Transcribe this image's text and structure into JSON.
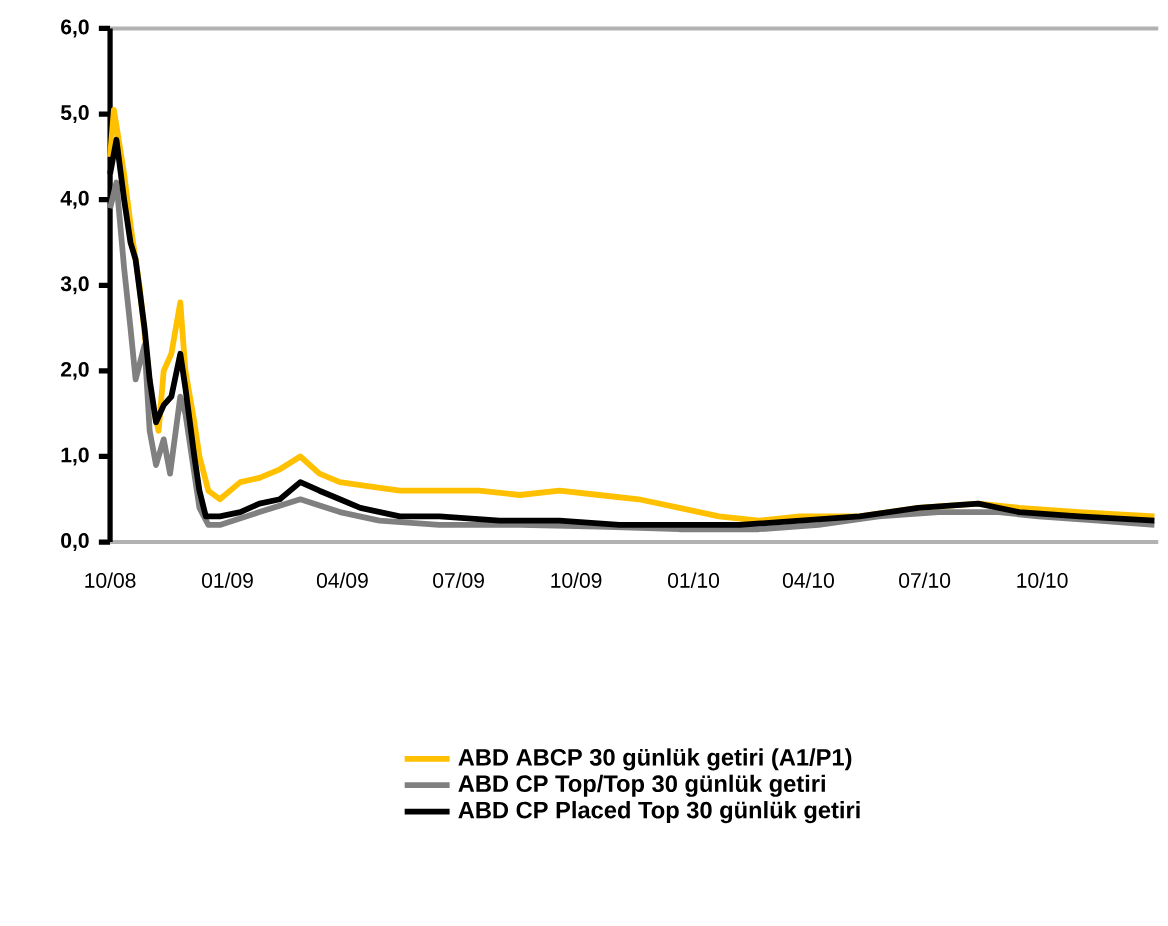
{
  "chart_data": {
    "type": "line",
    "xlim": [
      "2008-10-01",
      "2010-12-31"
    ],
    "xticks": [
      {
        "value": "2008-10-01",
        "label": "10/08"
      },
      {
        "value": "2009-01-01",
        "label": "01/09"
      },
      {
        "value": "2009-04-01",
        "label": "04/09"
      },
      {
        "value": "2009-07-01",
        "label": "07/09"
      },
      {
        "value": "2009-10-01",
        "label": "10/09"
      },
      {
        "value": "2010-01-01",
        "label": "01/10"
      },
      {
        "value": "2010-04-01",
        "label": "04/10"
      },
      {
        "value": "2010-07-01",
        "label": "07/10"
      },
      {
        "value": "2010-10-01",
        "label": "10/10"
      }
    ],
    "ylim": [
      0,
      6
    ],
    "yticks": [
      {
        "value": 0,
        "label": "0,0"
      },
      {
        "value": 1,
        "label": "1,0"
      },
      {
        "value": 2,
        "label": "2,0"
      },
      {
        "value": 3,
        "label": "3,0"
      },
      {
        "value": 4,
        "label": "4,0"
      },
      {
        "value": 5,
        "label": "5,0"
      },
      {
        "value": 6,
        "label": "6,0"
      }
    ],
    "legend": "bottom",
    "grid": false,
    "marker": "none",
    "line_style": "solid",
    "series": [
      {
        "name": "ABD ABCP 30 günlük getiri (A1/P1)",
        "color": "#ffc000",
        "x": [
          "2008-10-01",
          "2008-10-04",
          "2008-10-12",
          "2008-10-18",
          "2008-10-24",
          "2008-10-29",
          "2008-11-03",
          "2008-11-08",
          "2008-11-12",
          "2008-11-18",
          "2008-11-25",
          "2008-11-29",
          "2008-12-06",
          "2008-12-10",
          "2008-12-17",
          "2008-12-26",
          "2009-01-11",
          "2009-01-26",
          "2009-02-11",
          "2009-02-27",
          "2009-03-14",
          "2009-03-30",
          "2009-04-22",
          "2009-05-16",
          "2009-06-16",
          "2009-07-17",
          "2009-08-18",
          "2009-09-18",
          "2009-10-19",
          "2009-11-19",
          "2009-12-21",
          "2010-01-21",
          "2010-02-21",
          "2010-03-25",
          "2010-05-11",
          "2010-06-26",
          "2010-08-12",
          "2010-09-13",
          "2010-10-30",
          "2010-12-28"
        ],
        "values": [
          4.5,
          5.05,
          4.3,
          3.6,
          3.0,
          2.3,
          1.6,
          1.3,
          2.0,
          2.2,
          2.8,
          2.0,
          1.4,
          1.0,
          0.6,
          0.5,
          0.7,
          0.75,
          0.85,
          1.0,
          0.8,
          0.7,
          0.65,
          0.6,
          0.6,
          0.6,
          0.55,
          0.6,
          0.55,
          0.5,
          0.4,
          0.3,
          0.25,
          0.3,
          0.3,
          0.4,
          0.45,
          0.4,
          0.35,
          0.3
        ]
      },
      {
        "name": "ABD CP Top/Top 30 günlük getiri",
        "color": "#808080",
        "x": [
          "2008-10-01",
          "2008-10-06",
          "2008-10-12",
          "2008-10-17",
          "2008-10-21",
          "2008-10-28",
          "2008-11-01",
          "2008-11-06",
          "2008-11-12",
          "2008-11-17",
          "2008-11-25",
          "2008-11-29",
          "2008-12-06",
          "2008-12-10",
          "2008-12-17",
          "2008-12-26",
          "2009-01-26",
          "2009-02-27",
          "2009-03-30",
          "2009-04-30",
          "2009-06-16",
          "2009-08-18",
          "2009-10-19",
          "2009-12-21",
          "2010-02-21",
          "2010-04-09",
          "2010-05-26",
          "2010-07-12",
          "2010-08-28",
          "2010-09-28",
          "2010-11-14",
          "2010-12-28"
        ],
        "values": [
          3.9,
          4.2,
          3.2,
          2.5,
          1.9,
          2.3,
          1.3,
          0.9,
          1.2,
          0.8,
          1.7,
          1.5,
          0.8,
          0.4,
          0.2,
          0.2,
          0.35,
          0.5,
          0.35,
          0.25,
          0.2,
          0.2,
          0.18,
          0.15,
          0.15,
          0.2,
          0.3,
          0.35,
          0.35,
          0.3,
          0.25,
          0.2
        ]
      },
      {
        "name": "ABD CP Placed Top 30 günlük getiri",
        "color": "#000000",
        "x": [
          "2008-10-01",
          "2008-10-06",
          "2008-10-12",
          "2008-10-17",
          "2008-10-21",
          "2008-10-28",
          "2008-11-01",
          "2008-11-06",
          "2008-11-12",
          "2008-11-18",
          "2008-11-25",
          "2008-11-29",
          "2008-12-06",
          "2008-12-10",
          "2008-12-15",
          "2008-12-26",
          "2009-01-11",
          "2009-01-26",
          "2009-02-11",
          "2009-02-27",
          "2009-03-14",
          "2009-03-30",
          "2009-04-15",
          "2009-05-16",
          "2009-06-16",
          "2009-08-02",
          "2009-09-18",
          "2009-11-04",
          "2009-12-21",
          "2010-02-06",
          "2010-03-25",
          "2010-05-11",
          "2010-06-26",
          "2010-08-12",
          "2010-09-13",
          "2010-10-30",
          "2010-12-28"
        ],
        "values": [
          4.3,
          4.7,
          4.0,
          3.5,
          3.3,
          2.5,
          1.9,
          1.4,
          1.6,
          1.7,
          2.2,
          1.8,
          1.0,
          0.6,
          0.3,
          0.3,
          0.35,
          0.45,
          0.5,
          0.7,
          0.6,
          0.5,
          0.4,
          0.3,
          0.3,
          0.25,
          0.25,
          0.2,
          0.2,
          0.2,
          0.25,
          0.3,
          0.4,
          0.45,
          0.35,
          0.3,
          0.25
        ]
      }
    ]
  }
}
